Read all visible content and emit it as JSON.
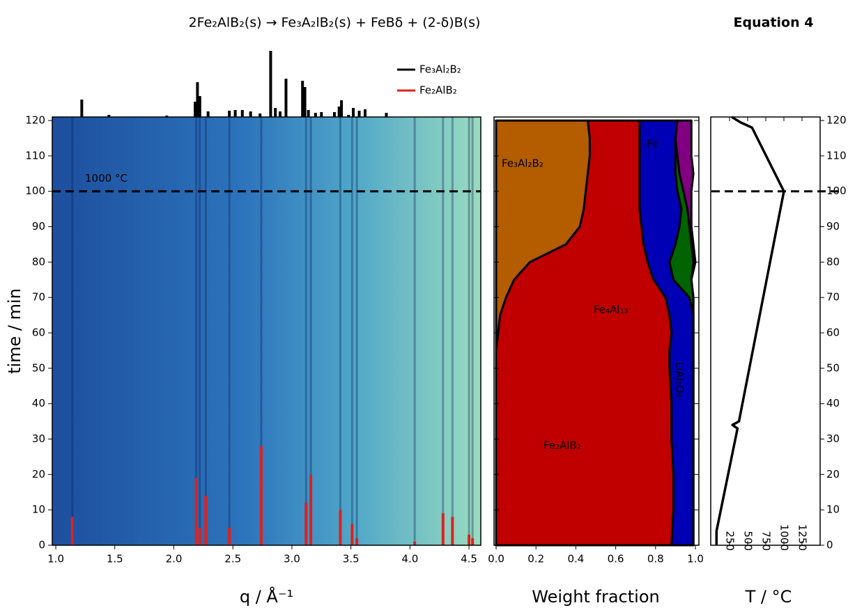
{
  "header": {
    "equation": "2Fe₂AlB₂(s) → Fe₃A₂lB₂(s) + FeBδ + (2-δ)B(s)",
    "equation_label": "Equation 4"
  },
  "chart_data": [
    {
      "type": "heatmap",
      "xlabel": "q / Å⁻¹",
      "ylabel": "time / min",
      "xlim": [
        0.97,
        4.6
      ],
      "ylim": [
        0,
        121
      ],
      "xticks": [
        {
          "value": 1,
          "label": "1.0"
        },
        {
          "value": 1.5,
          "label": "1.5"
        },
        {
          "value": 2,
          "label": "2.0"
        },
        {
          "value": 2.5,
          "label": "2.5"
        },
        {
          "value": 3,
          "label": "3.0"
        },
        {
          "value": 3.5,
          "label": "3.5"
        },
        {
          "value": 4,
          "label": "4.0"
        },
        {
          "value": 4.5,
          "label": "4.5"
        }
      ],
      "yticks": [
        0,
        10,
        20,
        30,
        40,
        50,
        60,
        70,
        80,
        90,
        100,
        110,
        120
      ],
      "hline": 100,
      "annotation": "1000 °C",
      "series": [
        {
          "name": "Fe₃Al₂B₂",
          "color": "#000000",
          "x": [
            1.22,
            1.45,
            1.94,
            2.18,
            2.2,
            2.22,
            2.29,
            2.47,
            2.52,
            2.58,
            2.65,
            2.73,
            2.82,
            2.86,
            2.9,
            2.95,
            3.09,
            3.11,
            3.14,
            3.2,
            3.25,
            3.36,
            3.4,
            3.42,
            3.48,
            3.52,
            3.57,
            3.62,
            3.8
          ],
          "values": [
            25,
            3,
            2,
            22,
            50,
            30,
            8,
            9,
            10,
            10,
            8,
            5,
            95,
            13,
            8,
            55,
            52,
            43,
            10,
            6,
            7,
            7,
            15,
            24,
            3,
            13,
            9,
            11,
            6
          ]
        },
        {
          "name": "Fe₂AlB₂",
          "color": "#e0201c",
          "x": [
            1.14,
            2.19,
            2.22,
            2.27,
            2.47,
            2.74,
            3.12,
            3.16,
            3.41,
            3.51,
            3.55,
            4.04,
            4.28,
            4.36,
            4.5,
            4.53
          ],
          "values": [
            8,
            19,
            5,
            14,
            5,
            28,
            12,
            20,
            10,
            6,
            2,
            1,
            9,
            8,
            3,
            2
          ]
        }
      ]
    },
    {
      "type": "stacked-area",
      "xlabel": "Weight fraction",
      "xlim": [
        0,
        1
      ],
      "ylim": [
        0,
        121
      ],
      "xticks": [
        {
          "value": 0,
          "label": "0.0"
        },
        {
          "value": 0.2,
          "label": "0.2"
        },
        {
          "value": 0.4,
          "label": "0.4"
        },
        {
          "value": 0.6,
          "label": "0.6"
        },
        {
          "value": 0.8,
          "label": "0.8"
        },
        {
          "value": 1,
          "label": "1.0"
        }
      ],
      "yticks": [
        0,
        10,
        20,
        30,
        40,
        50,
        60,
        70,
        80,
        90,
        100,
        110,
        120
      ],
      "y": [
        0,
        10,
        20,
        30,
        40,
        50,
        55,
        60,
        65,
        70,
        75,
        80,
        85,
        90,
        95,
        100,
        105,
        110,
        115,
        120
      ],
      "series": [
        {
          "name": "Fe₃Al₂B₂",
          "color": "#b35c00",
          "values": [
            0,
            0,
            0,
            0,
            0,
            0,
            0,
            0.01,
            0.02,
            0.05,
            0.09,
            0.17,
            0.35,
            0.42,
            0.44,
            0.45,
            0.46,
            0.47,
            0.47,
            0.46
          ]
        },
        {
          "name": "Fe₂AlB₂",
          "color": "#c00000",
          "values": [
            0.88,
            0.89,
            0.89,
            0.88,
            0.88,
            0.87,
            0.87,
            0.87,
            0.85,
            0.8,
            0.7,
            0.59,
            0.39,
            0.31,
            0.28,
            0.27,
            0.26,
            0.25,
            0.25,
            0.26
          ]
        },
        {
          "name": "LiAl₅O₈",
          "color": "#0000b4",
          "values": [
            0.11,
            0.1,
            0.1,
            0.11,
            0.11,
            0.12,
            0.12,
            0.11,
            0.12,
            0.12,
            0.1,
            0.11,
            0.16,
            0.19,
            0.21,
            0.19,
            0.18,
            0.18,
            0.18,
            0.19
          ]
        },
        {
          "name": "Fe₄Al₁₃",
          "color": "#006400",
          "values": [
            0,
            0,
            0,
            0,
            0,
            0,
            0,
            0,
            0,
            0.02,
            0.09,
            0.12,
            0.08,
            0.05,
            0.03,
            0.03,
            0.02,
            0.01,
            0,
            0
          ]
        },
        {
          "name": "Fe",
          "color": "#800080",
          "values": [
            0,
            0,
            0,
            0,
            0,
            0,
            0,
            0,
            0,
            0,
            0,
            0.01,
            0.01,
            0.01,
            0.02,
            0.04,
            0.07,
            0.07,
            0.08,
            0.07
          ]
        }
      ]
    },
    {
      "type": "line",
      "xlabel": "T / °C",
      "xlim": [
        0,
        1500
      ],
      "ylim": [
        0,
        121
      ],
      "xticks": [
        250,
        500,
        750,
        1000,
        1250
      ],
      "yticks": [
        0,
        10,
        20,
        30,
        40,
        50,
        60,
        70,
        80,
        90,
        100,
        110,
        120
      ],
      "hline": 100,
      "color": "#000000",
      "x": [
        70,
        70,
        360,
        290,
        380,
        1000,
        560,
        400,
        280
      ],
      "values": [
        0,
        4,
        33,
        34,
        35,
        100,
        118,
        119.5,
        121
      ]
    }
  ]
}
